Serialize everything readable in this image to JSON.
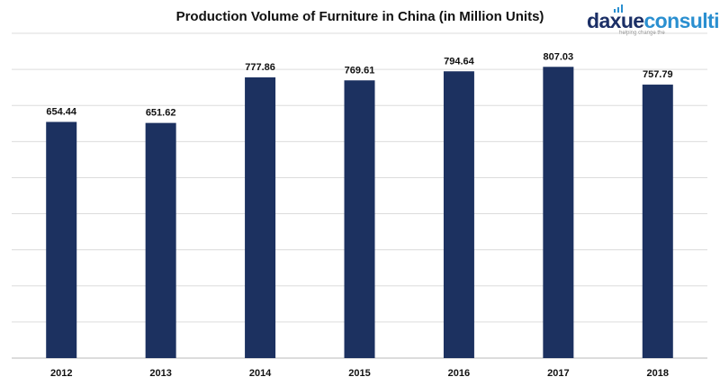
{
  "chart_data": {
    "type": "bar",
    "title": "Production Volume of Furniture in China (in Million Units)",
    "categories": [
      "2012",
      "2013",
      "2014",
      "2015",
      "2016",
      "2017",
      "2018"
    ],
    "values": [
      654.44,
      651.62,
      777.86,
      769.61,
      794.64,
      807.03,
      757.79
    ],
    "value_labels": [
      "654.44",
      "651.62",
      "777.86",
      "769.61",
      "794.64",
      "807.03",
      "757.79"
    ],
    "xlabel": "",
    "ylabel": "",
    "ylim": [
      0,
      900
    ],
    "grid": true,
    "legend": "none",
    "bar_color": "#1c3160"
  },
  "logo": {
    "text_part1": "daxue",
    "text_part2": "consulting",
    "tagline": "helping change the",
    "colors": {
      "primary": "#1b2f66",
      "accent": "#2a8fd0"
    }
  }
}
